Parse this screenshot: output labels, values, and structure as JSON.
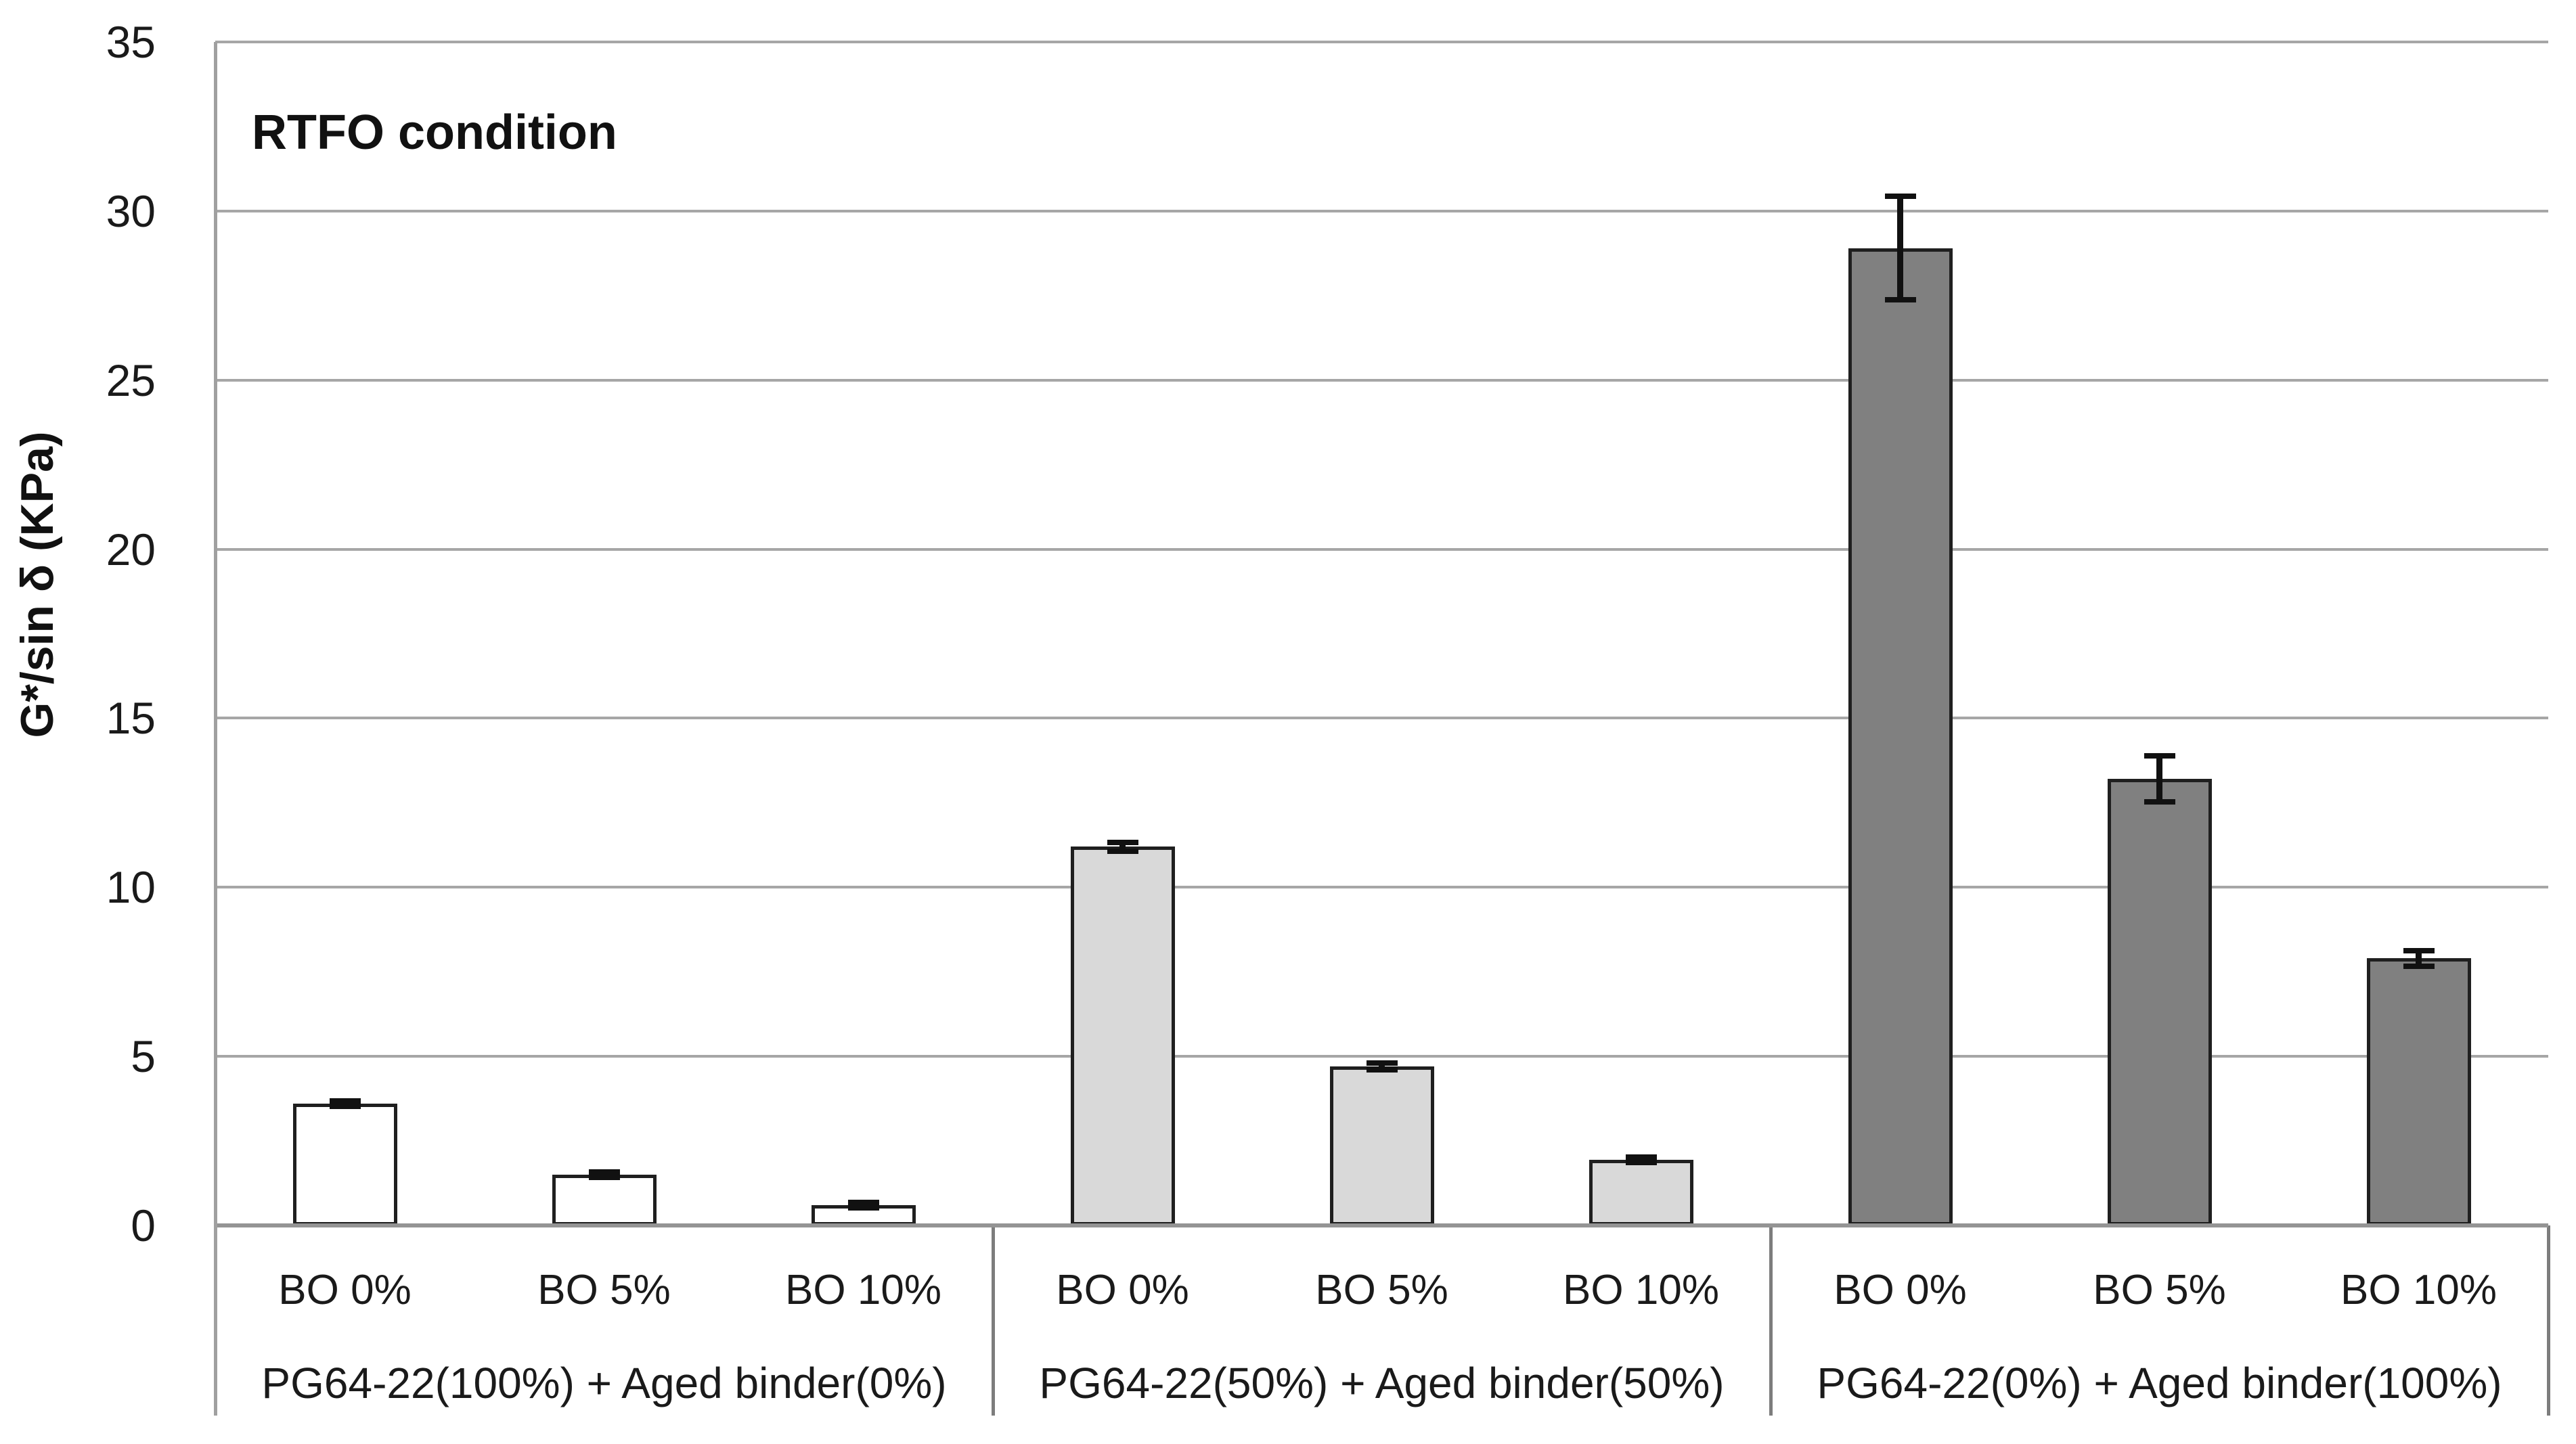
{
  "figure": {
    "annotation": "RTFO condition",
    "y_axis_title": "G*/sin δ (KPa)"
  },
  "chart_data": {
    "type": "bar",
    "title": "RTFO condition",
    "xlabel": "",
    "ylabel": "G*/sin δ (KPa)",
    "ylim": [
      0,
      35
    ],
    "yticks": [
      0,
      5,
      10,
      15,
      20,
      25,
      30,
      35
    ],
    "grid": "horizontal",
    "legend": "none",
    "error_bars": true,
    "colors": {
      "bar_border": "#1f1f1f",
      "gridline": "#a6a6a6",
      "axis": "#949494",
      "divider": "#7d7d7d",
      "text": "#1a1a1a"
    },
    "groups": [
      {
        "label": "PG64-22(100%) + Aged binder(0%)",
        "fill": "#ffffff",
        "bars": [
          {
            "category": "BO 0%",
            "value": 3.6,
            "error": 0.1
          },
          {
            "category": "BO 5%",
            "value": 1.5,
            "error": 0.1
          },
          {
            "category": "BO 10%",
            "value": 0.6,
            "error": 0.1
          }
        ]
      },
      {
        "label": "PG64-22(50%) + Aged binder(50%)",
        "fill": "#d9d9d9",
        "bars": [
          {
            "category": "BO 0%",
            "value": 11.2,
            "error": 0.15
          },
          {
            "category": "BO 5%",
            "value": 4.7,
            "error": 0.12
          },
          {
            "category": "BO 10%",
            "value": 1.95,
            "error": 0.1
          }
        ]
      },
      {
        "label": "PG64-22(0%) + Aged binder(100%)",
        "fill": "#808080",
        "bars": [
          {
            "category": "BO 0%",
            "value": 28.9,
            "error": 1.55
          },
          {
            "category": "BO 5%",
            "value": 13.2,
            "error": 0.7
          },
          {
            "category": "BO 10%",
            "value": 7.9,
            "error": 0.25
          }
        ]
      }
    ]
  }
}
